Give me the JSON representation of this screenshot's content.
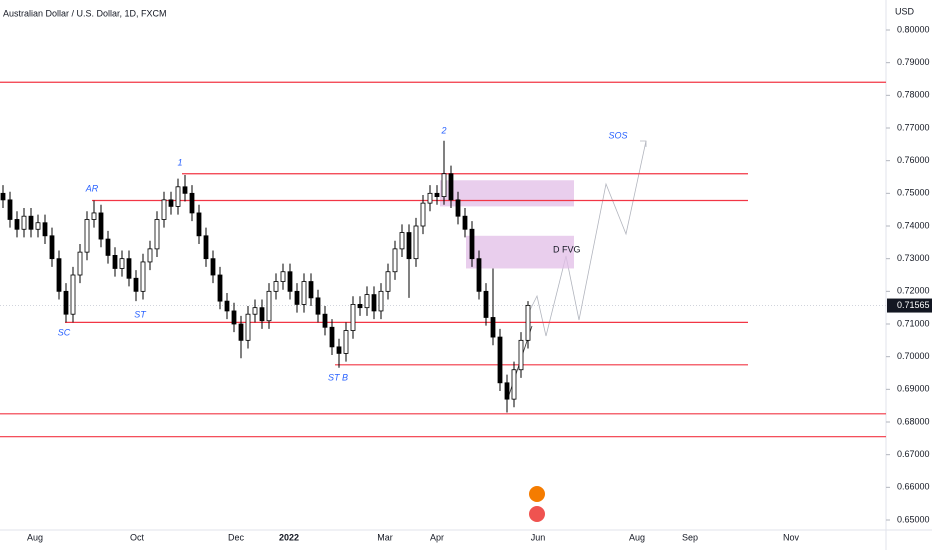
{
  "chart_data": {
    "type": "candlestick",
    "title": "Australian Dollar / U.S. Dollar, 1D, FXCM",
    "y_axis_label": "USD",
    "ylim": [
      0.646,
      0.806
    ],
    "yticks": [
      {
        "value": 0.8,
        "label": "0.80000"
      },
      {
        "value": 0.79,
        "label": "0.79000"
      },
      {
        "value": 0.78,
        "label": "0.78000"
      },
      {
        "value": 0.77,
        "label": "0.77000"
      },
      {
        "value": 0.76,
        "label": "0.76000"
      },
      {
        "value": 0.75,
        "label": "0.75000"
      },
      {
        "value": 0.74,
        "label": "0.74000"
      },
      {
        "value": 0.73,
        "label": "0.73000"
      },
      {
        "value": 0.72,
        "label": "0.72000"
      },
      {
        "value": 0.71,
        "label": "0.71000"
      },
      {
        "value": 0.7,
        "label": "0.70000"
      },
      {
        "value": 0.69,
        "label": "0.69000"
      },
      {
        "value": 0.68,
        "label": "0.68000"
      },
      {
        "value": 0.67,
        "label": "0.67000"
      },
      {
        "value": 0.66,
        "label": "0.66000"
      },
      {
        "value": 0.65,
        "label": "0.65000"
      }
    ],
    "xtick_labels": [
      "Aug",
      "Oct",
      "Dec",
      "2022",
      "Mar",
      "Apr",
      "Jun",
      "Aug",
      "Sep",
      "Nov"
    ],
    "last_price": 0.71565,
    "up_color": "#ffffff",
    "down_color": "#000000",
    "level_color": "#f23645",
    "zone_color": "#e1bee7",
    "candles": [
      [
        0.75,
        0.7525,
        0.7455,
        0.748
      ],
      [
        0.748,
        0.7505,
        0.7395,
        0.742
      ],
      [
        0.742,
        0.7445,
        0.7365,
        0.739
      ],
      [
        0.739,
        0.7455,
        0.7365,
        0.743
      ],
      [
        0.743,
        0.7455,
        0.7365,
        0.739
      ],
      [
        0.739,
        0.7435,
        0.7365,
        0.741
      ],
      [
        0.741,
        0.7435,
        0.7345,
        0.737
      ],
      [
        0.737,
        0.7395,
        0.7275,
        0.73
      ],
      [
        0.73,
        0.7325,
        0.7175,
        0.72
      ],
      [
        0.72,
        0.7225,
        0.7105,
        0.713
      ],
      [
        0.713,
        0.7275,
        0.7105,
        0.725
      ],
      [
        0.725,
        0.7345,
        0.7225,
        0.732
      ],
      [
        0.732,
        0.7445,
        0.7295,
        0.742
      ],
      [
        0.742,
        0.7478,
        0.7395,
        0.744
      ],
      [
        0.744,
        0.7465,
        0.7335,
        0.736
      ],
      [
        0.736,
        0.7385,
        0.7285,
        0.731
      ],
      [
        0.731,
        0.7335,
        0.7245,
        0.727
      ],
      [
        0.727,
        0.7325,
        0.7245,
        0.73
      ],
      [
        0.73,
        0.7325,
        0.7215,
        0.724
      ],
      [
        0.724,
        0.7265,
        0.717,
        0.72
      ],
      [
        0.72,
        0.7315,
        0.7175,
        0.729
      ],
      [
        0.729,
        0.7355,
        0.7265,
        0.733
      ],
      [
        0.733,
        0.7445,
        0.7305,
        0.742
      ],
      [
        0.742,
        0.7505,
        0.7395,
        0.748
      ],
      [
        0.748,
        0.7505,
        0.7435,
        0.746
      ],
      [
        0.746,
        0.7545,
        0.7435,
        0.752
      ],
      [
        0.752,
        0.7556,
        0.7475,
        0.75
      ],
      [
        0.75,
        0.7525,
        0.7415,
        0.744
      ],
      [
        0.744,
        0.7465,
        0.7345,
        0.737
      ],
      [
        0.737,
        0.7395,
        0.7275,
        0.73
      ],
      [
        0.73,
        0.7325,
        0.7225,
        0.725
      ],
      [
        0.725,
        0.7275,
        0.7145,
        0.717
      ],
      [
        0.717,
        0.7195,
        0.7115,
        0.714
      ],
      [
        0.714,
        0.7165,
        0.7075,
        0.71
      ],
      [
        0.71,
        0.7125,
        0.6995,
        0.705
      ],
      [
        0.705,
        0.7155,
        0.7025,
        0.713
      ],
      [
        0.713,
        0.7175,
        0.7105,
        0.715
      ],
      [
        0.715,
        0.7175,
        0.7085,
        0.711
      ],
      [
        0.711,
        0.7225,
        0.7085,
        0.72
      ],
      [
        0.72,
        0.7255,
        0.7175,
        0.723
      ],
      [
        0.723,
        0.7285,
        0.7205,
        0.726
      ],
      [
        0.726,
        0.7285,
        0.7175,
        0.72
      ],
      [
        0.72,
        0.7225,
        0.7135,
        0.716
      ],
      [
        0.716,
        0.7255,
        0.7135,
        0.723
      ],
      [
        0.723,
        0.7255,
        0.7155,
        0.718
      ],
      [
        0.718,
        0.7205,
        0.7105,
        0.713
      ],
      [
        0.713,
        0.7155,
        0.7065,
        0.709
      ],
      [
        0.709,
        0.7115,
        0.7005,
        0.703
      ],
      [
        0.703,
        0.7055,
        0.6966,
        0.701
      ],
      [
        0.701,
        0.7105,
        0.6985,
        0.708
      ],
      [
        0.708,
        0.7185,
        0.7055,
        0.716
      ],
      [
        0.716,
        0.7185,
        0.7125,
        0.715
      ],
      [
        0.715,
        0.7215,
        0.7125,
        0.719
      ],
      [
        0.719,
        0.7215,
        0.7115,
        0.714
      ],
      [
        0.714,
        0.7225,
        0.7115,
        0.72
      ],
      [
        0.72,
        0.7285,
        0.7175,
        0.726
      ],
      [
        0.726,
        0.7355,
        0.7235,
        0.733
      ],
      [
        0.733,
        0.7405,
        0.7305,
        0.738
      ],
      [
        0.738,
        0.7405,
        0.718,
        0.73
      ],
      [
        0.73,
        0.7425,
        0.7275,
        0.74
      ],
      [
        0.74,
        0.7495,
        0.7375,
        0.747
      ],
      [
        0.747,
        0.7525,
        0.7445,
        0.75
      ],
      [
        0.75,
        0.7525,
        0.7465,
        0.749
      ],
      [
        0.749,
        0.7661,
        0.7465,
        0.756
      ],
      [
        0.756,
        0.7585,
        0.7455,
        0.748
      ],
      [
        0.748,
        0.7505,
        0.7405,
        0.743
      ],
      [
        0.743,
        0.7455,
        0.7365,
        0.739
      ],
      [
        0.739,
        0.7415,
        0.7275,
        0.73
      ],
      [
        0.73,
        0.7325,
        0.7175,
        0.72
      ],
      [
        0.72,
        0.7225,
        0.7095,
        0.712
      ],
      [
        0.712,
        0.727,
        0.7035,
        0.706
      ],
      [
        0.706,
        0.7085,
        0.6895,
        0.692
      ],
      [
        0.692,
        0.6945,
        0.6829,
        0.687
      ],
      [
        0.687,
        0.6985,
        0.6845,
        0.696
      ],
      [
        0.696,
        0.7075,
        0.6935,
        0.705
      ],
      [
        0.705,
        0.717,
        0.7025,
        0.7157
      ]
    ],
    "levels": [
      0.784,
      0.756,
      0.7478,
      0.7105,
      0.6975,
      0.6825,
      0.6755
    ],
    "zones": [
      {
        "top": 0.754,
        "bottom": 0.746
      },
      {
        "top": 0.737,
        "bottom": 0.727,
        "label": "D FVG"
      }
    ],
    "annotations": [
      "SC",
      "AR",
      "ST",
      "1",
      "ST B",
      "2",
      "SOS"
    ]
  }
}
